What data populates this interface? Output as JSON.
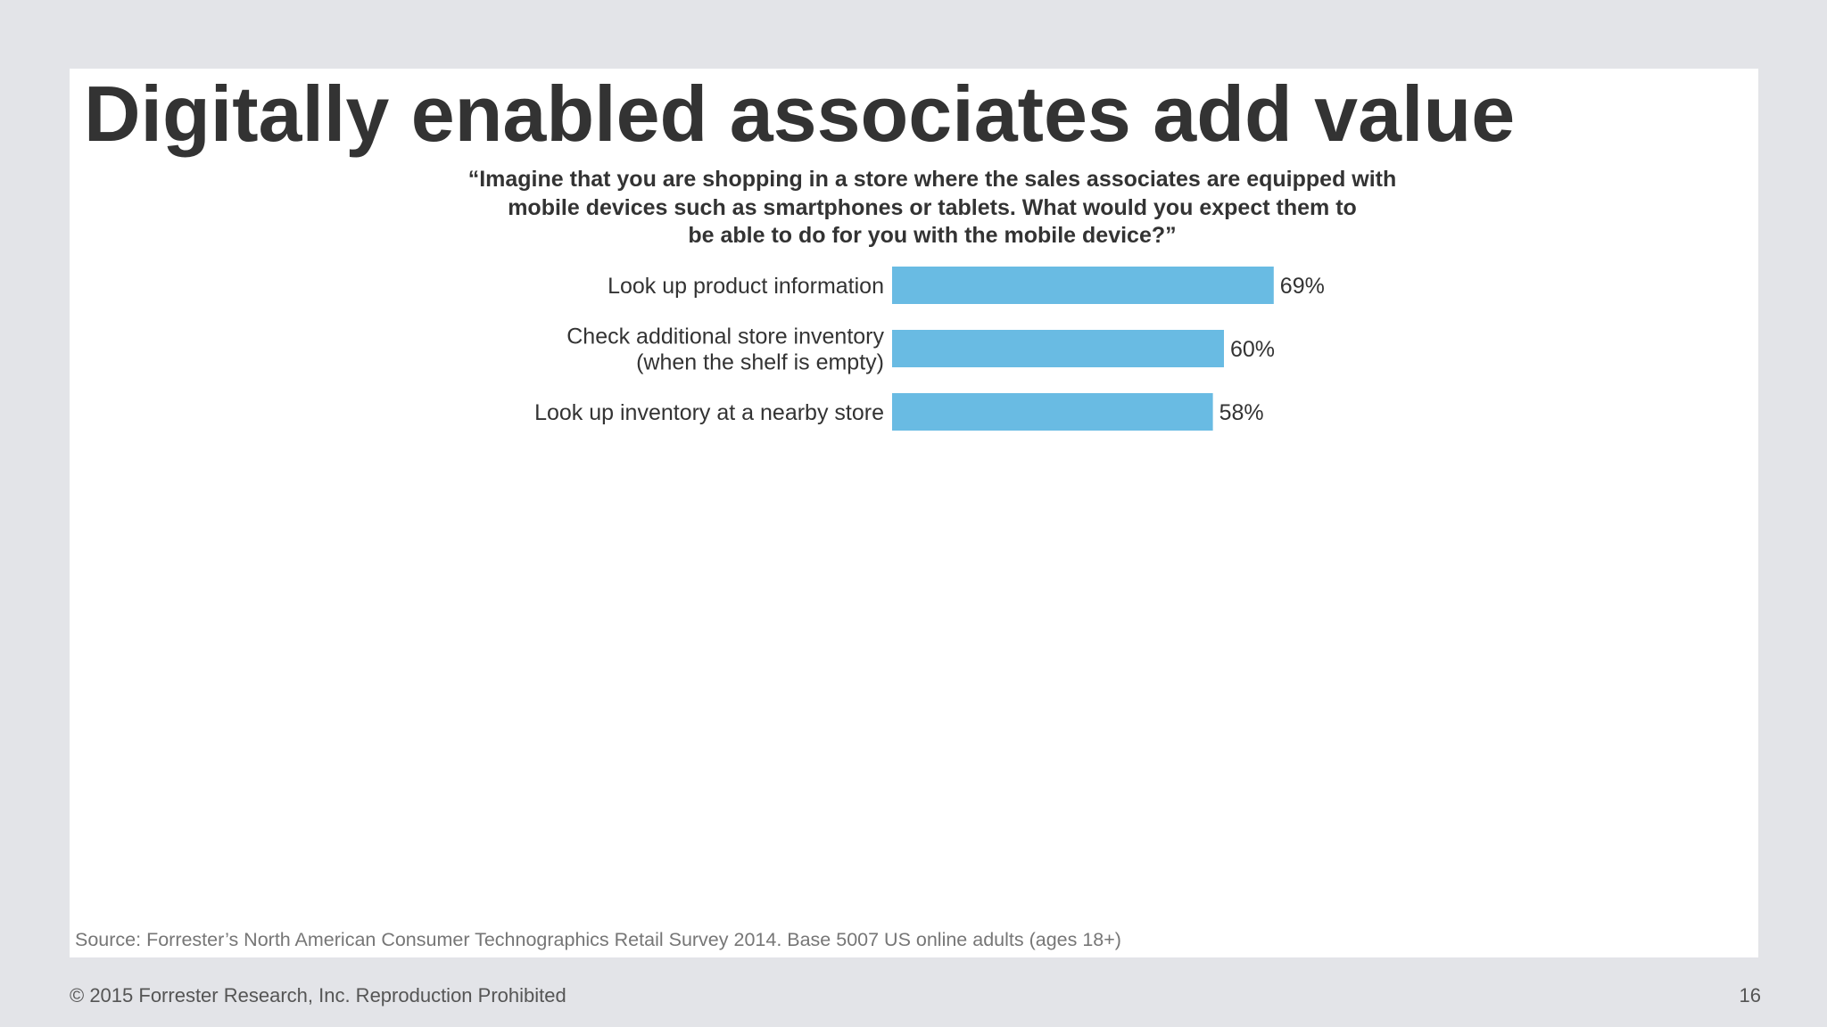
{
  "slide": {
    "title": "Digitally enabled associates add value",
    "question_lines": [
      "“Imagine that you are shopping in a store where the sales associates are equipped with",
      "mobile devices such as smartphones or tablets. What would you expect them to",
      "be able to do for you with the mobile device?”"
    ],
    "source": "Source: Forrester’s North American Consumer Technographics Retail Survey 2014. Base 5007 US online adults (ages 18+)",
    "copyright": "© 2015 Forrester Research, Inc. Reproduction Prohibited",
    "page_number": "16"
  },
  "chart_data": {
    "type": "bar",
    "orientation": "horizontal",
    "categories": [
      [
        "Look up product information"
      ],
      [
        "Check additional store inventory",
        "(when the shelf is empty)"
      ],
      [
        "Look up inventory at a nearby store"
      ]
    ],
    "values": [
      69,
      60,
      58
    ],
    "value_labels": [
      "69%",
      "60%",
      "58%"
    ],
    "unit": "%",
    "xlim": [
      0,
      100
    ],
    "grid": false,
    "legend": "none",
    "bar_color": "#69bbe3"
  }
}
